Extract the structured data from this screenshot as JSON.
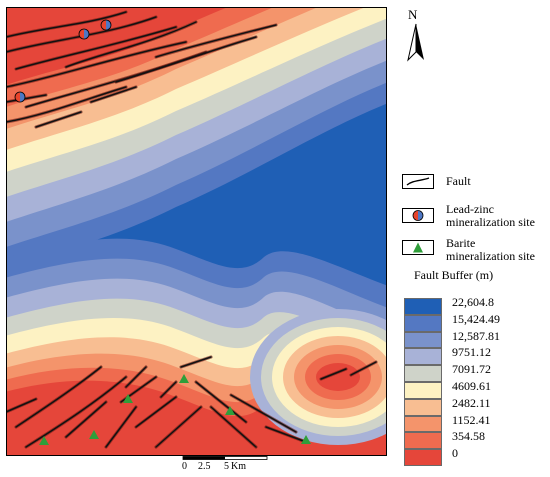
{
  "north": {
    "label": "N",
    "icon": "north-arrow-icon"
  },
  "map": {
    "zone_colors": [
      "#e5463a",
      "#ef6b4f",
      "#f4946b",
      "#f8be92",
      "#fdf2c3",
      "#cfd3c9",
      "#a8b2d7",
      "#7a92cb",
      "#5478c2",
      "#1f5fb5"
    ],
    "fault_color": "#111111",
    "lead_zinc_colors": [
      "#e8442c",
      "#4e77c4"
    ],
    "barite_color": "#2f9e3a"
  },
  "legend": {
    "fault_label": "Fault",
    "fault_icon": "fault-line-icon",
    "lead_zinc_label": [
      "Lead-zinc",
      "mineralization site"
    ],
    "lead_zinc_icon": "lead-zinc-site-icon",
    "barite_label": [
      "Barite",
      "mineralization site"
    ],
    "barite_icon": "barite-site-icon",
    "buffer_title": "Fault Buffer (m)",
    "buffer_classes": [
      {
        "label": "22,604.8",
        "color": "#1f5fb5"
      },
      {
        "label": "15,424.49",
        "color": "#5478c2"
      },
      {
        "label": "12,587.81",
        "color": "#7a92cb"
      },
      {
        "label": "9751.12",
        "color": "#a8b2d7"
      },
      {
        "label": "7091.72",
        "color": "#cfd3c9"
      },
      {
        "label": "4609.61",
        "color": "#fdf2c3"
      },
      {
        "label": "2482.11",
        "color": "#f8be92"
      },
      {
        "label": "1152.41",
        "color": "#f4946b"
      },
      {
        "label": "354.58",
        "color": "#ef6b4f"
      },
      {
        "label": "0",
        "color": "#e5463a"
      }
    ]
  },
  "scale_bar": {
    "ticks": [
      "0",
      "2.5",
      "5"
    ],
    "unit": "Km"
  }
}
